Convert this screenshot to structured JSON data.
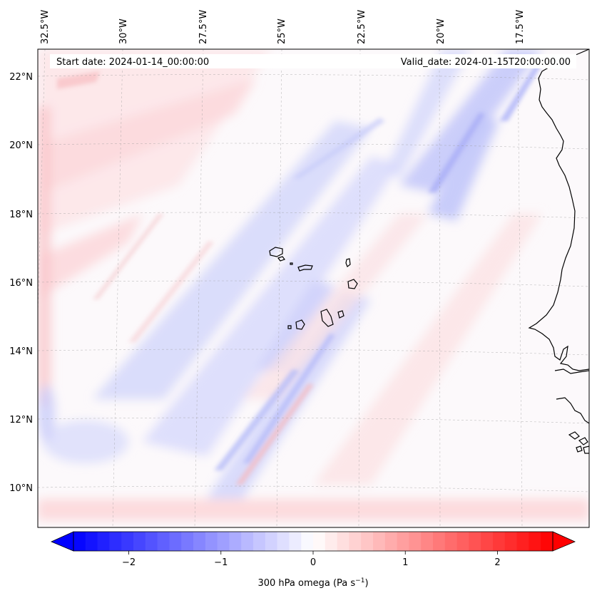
{
  "map": {
    "header": {
      "start_date": "Start date: 2024-01-14_00:00:00",
      "valid_date": "Valid_date: 2024-01-15T20:00:00.00"
    },
    "lon_labels": [
      "32.5°W",
      "30°W",
      "27.5°W",
      "25°W",
      "22.5°W",
      "20°W",
      "17.5°W"
    ],
    "lat_labels": [
      "22°N",
      "20°N",
      "18°N",
      "16°N",
      "14°N",
      "12°N",
      "10°N"
    ],
    "extent": {
      "lon_min": -33.0,
      "lon_max": -15.5,
      "lat_min": 8.9,
      "lat_max": 22.8
    },
    "features": [
      "Cabo Verde islands",
      "West African coastline"
    ]
  },
  "colorbar": {
    "label": "300 hPa omega (Pa s",
    "label_exp": "−1",
    "label_close": ")",
    "vmin": -2.6,
    "vmax": 2.6,
    "tick_values": [
      -2,
      -1,
      0,
      1,
      2
    ],
    "tick_labels": [
      "−2",
      "−1",
      "0",
      "1",
      "2"
    ],
    "colormap": "bwr",
    "colors": {
      "negative": "#0000ff",
      "zero": "#ffffff",
      "positive": "#ff0000"
    }
  }
}
